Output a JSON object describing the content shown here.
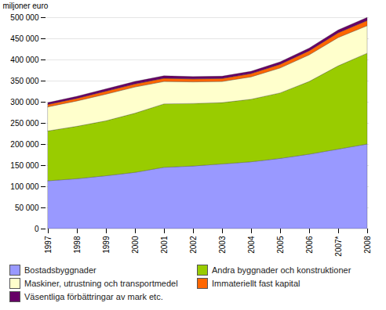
{
  "chart_data": {
    "type": "area",
    "stacked": true,
    "ylabel": "miljoner euro",
    "categories": [
      "1997",
      "1998",
      "1999",
      "2000",
      "2001",
      "2002",
      "2003",
      "2004",
      "2005",
      "2006",
      "2007*",
      "2008"
    ],
    "series": [
      {
        "name": "Bostadsbyggnader",
        "color": "#9999FF",
        "values": [
          113000,
          118000,
          125000,
          133000,
          145000,
          148000,
          153000,
          158000,
          166000,
          176000,
          188000,
          200000
        ]
      },
      {
        "name": "Andra byggnader och konstruktioner",
        "color": "#99CC00",
        "values": [
          118000,
          124000,
          130000,
          140000,
          150000,
          148000,
          145000,
          148000,
          155000,
          172000,
          197000,
          215000
        ]
      },
      {
        "name": "Maskiner, utrustning och transportmedel",
        "color": "#FFFFCC",
        "values": [
          57000,
          60000,
          63000,
          62000,
          53000,
          51000,
          50000,
          53000,
          59000,
          63000,
          67000,
          65000
        ]
      },
      {
        "name": "Immateriellt fast kapital",
        "color": "#FF6600",
        "values": [
          5500,
          6000,
          7000,
          7000,
          7500,
          7000,
          7000,
          7500,
          8500,
          9500,
          11000,
          12000
        ]
      },
      {
        "name": "Väsentliga förbättringar av mark etc.",
        "color": "#660066",
        "values": [
          4500,
          5000,
          5500,
          6000,
          6000,
          5500,
          5500,
          5700,
          6000,
          6500,
          7000,
          7500
        ]
      }
    ],
    "ylim": [
      0,
      500000
    ],
    "yticks": [
      0,
      {
        "value": 50000,
        "label": "50 000"
      },
      {
        "value": 100000,
        "label": "100 000"
      },
      {
        "value": 150000,
        "label": "150 000"
      },
      {
        "value": 200000,
        "label": "200 000"
      },
      {
        "value": 250000,
        "label": "250 000"
      },
      {
        "value": 300000,
        "label": "300 000"
      },
      {
        "value": 350000,
        "label": "350 000"
      },
      {
        "value": 400000,
        "label": "400 000"
      },
      {
        "value": 450000,
        "label": "450 000"
      },
      {
        "value": 500000,
        "label": "500 000"
      }
    ],
    "grid": true,
    "legend": "bottom"
  }
}
